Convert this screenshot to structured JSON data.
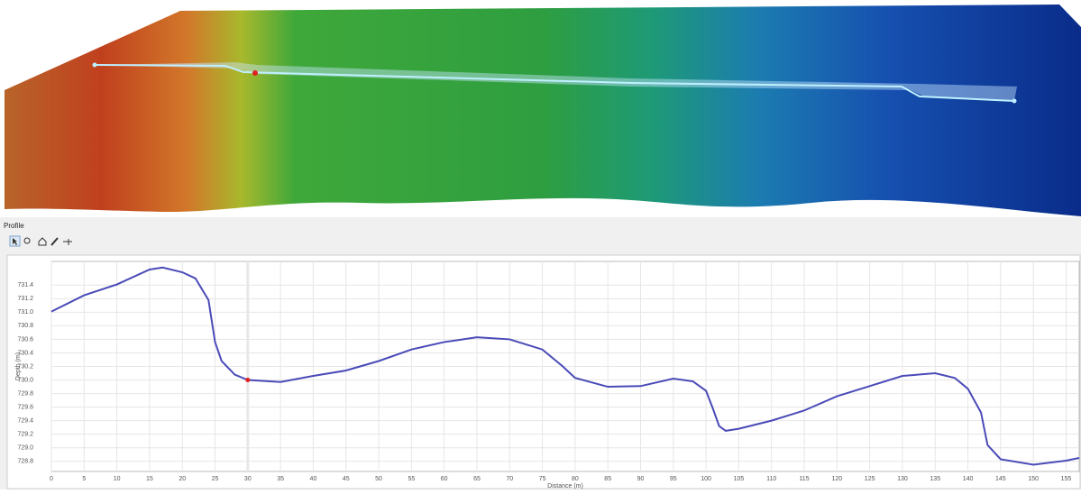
{
  "panel_title": "Profile",
  "chart_data": {
    "type": "line",
    "x_label": "Distance (m)",
    "y_label": "Depth (m)",
    "x": [
      0,
      5,
      10,
      15,
      17,
      20,
      22,
      24,
      25,
      26,
      28,
      30,
      35,
      40,
      45,
      50,
      55,
      60,
      65,
      70,
      75,
      78,
      80,
      85,
      90,
      95,
      98,
      100,
      101,
      102,
      103,
      105,
      110,
      115,
      120,
      125,
      130,
      135,
      138,
      140,
      142,
      143,
      145,
      150,
      155,
      157
    ],
    "series": [
      {
        "name": "Profile",
        "color": "#4a4ab8",
        "values": [
          731.01,
          731.25,
          731.41,
          731.63,
          731.66,
          731.59,
          731.5,
          731.18,
          730.56,
          730.28,
          730.08,
          730.0,
          729.97,
          730.06,
          730.14,
          730.28,
          730.45,
          730.56,
          730.63,
          730.6,
          730.45,
          730.21,
          730.03,
          729.9,
          729.91,
          730.02,
          729.98,
          729.84,
          729.59,
          729.32,
          729.25,
          729.28,
          729.4,
          729.55,
          729.76,
          729.91,
          730.06,
          730.1,
          730.03,
          729.87,
          729.52,
          729.04,
          728.83,
          728.75,
          728.81,
          728.85
        ]
      }
    ],
    "highlight": {
      "x": 30,
      "y": 730.0,
      "color": "#e02020"
    },
    "xlim": [
      0,
      157
    ],
    "ylim": [
      728.65,
      731.75
    ],
    "xticks": [
      0,
      5,
      10,
      15,
      20,
      25,
      30,
      35,
      40,
      45,
      50,
      55,
      60,
      65,
      70,
      75,
      80,
      85,
      90,
      95,
      100,
      105,
      110,
      115,
      120,
      125,
      130,
      135,
      140,
      145,
      150,
      155
    ],
    "yticks": [
      728.8,
      {
        "value": 729,
        "label": "729.0"
      },
      729.2,
      729.4,
      729.6,
      729.8,
      {
        "value": 730,
        "label": "730.0"
      },
      730.2,
      730.4,
      730.6,
      730.8,
      {
        "value": 731,
        "label": "731.0"
      },
      731.2,
      731.4
    ],
    "grid": true
  }
}
